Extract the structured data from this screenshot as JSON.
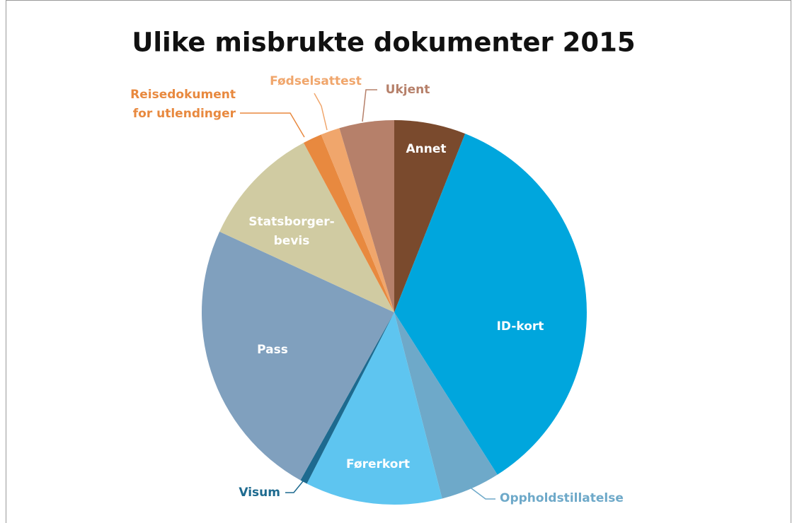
{
  "chart_data": {
    "type": "pie",
    "title": "Ulike misbrukte dokumenter 2015",
    "categories": [
      "Annet",
      "ID-kort",
      "Oppholdstillatelse",
      "Førerkort",
      "Visum",
      "Pass",
      "Statsborger-\nbevis",
      "Reisedokument\nfor utlendinger",
      "Fødselsattest",
      "Ukjent"
    ],
    "values": [
      6,
      35,
      5,
      11.5,
      0.6,
      23.8,
      10.3,
      1.6,
      1.6,
      4.6
    ],
    "colors": [
      "#7a4a2d",
      "#00a6dd",
      "#6ea9c9",
      "#5ec5f0",
      "#1d6a8f",
      "#80a0be",
      "#d0cba2",
      "#e8893f",
      "#f0a66c",
      "#b6806a"
    ]
  }
}
